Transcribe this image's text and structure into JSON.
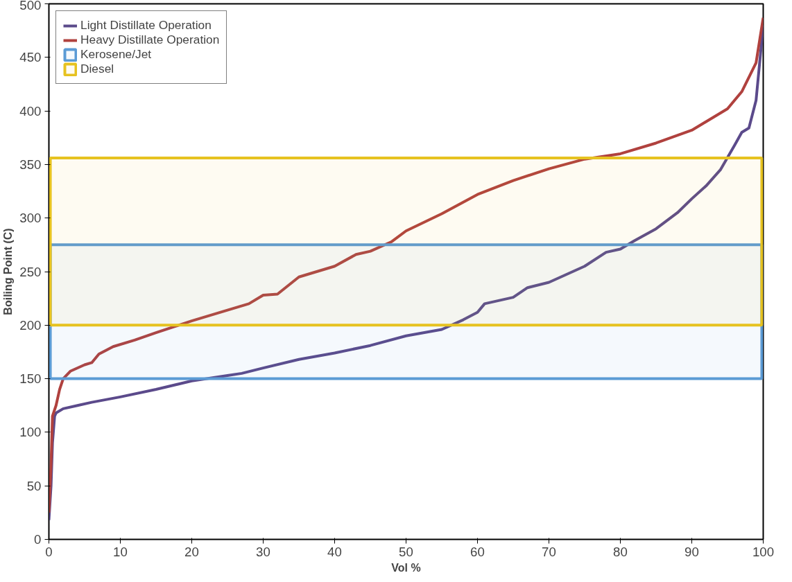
{
  "chart_data": {
    "type": "line",
    "xlabel": "Vol %",
    "ylabel": "Boiling Point (C)",
    "xlim": [
      0,
      100
    ],
    "ylim": [
      0,
      500
    ],
    "xticks": [
      0,
      10,
      20,
      30,
      40,
      50,
      60,
      70,
      80,
      90,
      100
    ],
    "yticks": [
      0,
      50,
      100,
      150,
      200,
      250,
      300,
      350,
      400,
      450,
      500
    ],
    "grid": false,
    "legend": "top left",
    "line_style": "solid",
    "marker": "none",
    "series": [
      {
        "name": "Light Distillate Operation",
        "color": "#5b4a8b",
        "x": [
          0,
          0.3,
          0.5,
          0.8,
          1,
          2,
          4,
          6,
          10,
          15,
          20,
          25,
          27,
          30,
          35,
          40,
          45,
          50,
          55,
          58,
          60,
          61,
          65,
          67,
          70,
          75,
          78,
          80,
          82,
          85,
          88,
          90,
          92,
          94,
          96,
          97,
          98,
          99,
          100
        ],
        "values": [
          18,
          50,
          90,
          115,
          118,
          122,
          125,
          128,
          133,
          140,
          148,
          153,
          155,
          160,
          168,
          174,
          181,
          190,
          196,
          205,
          212,
          220,
          226,
          235,
          240,
          255,
          268,
          271,
          279,
          290,
          305,
          318,
          330,
          345,
          368,
          380,
          384,
          410,
          480
        ]
      },
      {
        "name": "Heavy Distillate Operation",
        "color": "#b0413e",
        "x": [
          0,
          0.3,
          0.5,
          1,
          1.5,
          2,
          3,
          5,
          6,
          7,
          9,
          12,
          15,
          20,
          25,
          28,
          30,
          32,
          35,
          40,
          43,
          45,
          48,
          50,
          55,
          60,
          65,
          70,
          75,
          80,
          85,
          90,
          95,
          97,
          99,
          100
        ],
        "values": [
          25,
          70,
          115,
          125,
          140,
          150,
          157,
          163,
          165,
          173,
          180,
          186,
          193,
          204,
          214,
          220,
          228,
          229,
          245,
          255,
          266,
          269,
          278,
          288,
          304,
          322,
          335,
          346,
          355,
          360,
          370,
          382,
          402,
          418,
          445,
          487
        ]
      }
    ],
    "bands": [
      {
        "axis": "y",
        "from": 150,
        "to": 275,
        "label": "Kerosene/Jet",
        "color": "#5b9bd5"
      },
      {
        "axis": "y",
        "from": 200,
        "to": 356,
        "label": "Diesel",
        "color": "#e6c220"
      }
    ]
  }
}
